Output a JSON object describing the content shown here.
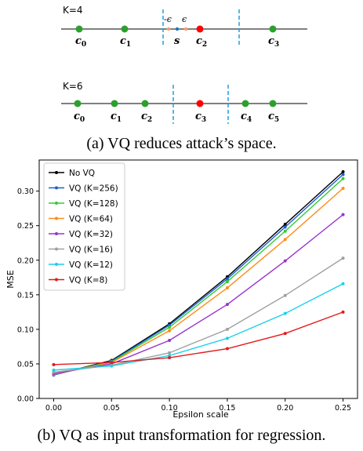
{
  "diagram": {
    "caption": "(a) VQ reduces attack’s space.",
    "panels": [
      {
        "k_label": "K=4",
        "points": [
          {
            "label": "c",
            "sub": "0",
            "color": "#2ca02c"
          },
          {
            "label": "c",
            "sub": "1",
            "color": "#2ca02c"
          },
          {
            "label": "c",
            "sub": "2",
            "color": "#ff0000"
          },
          {
            "label": "c",
            "sub": "3",
            "color": "#2ca02c"
          }
        ],
        "s_label": "s",
        "eps_left": "-ϵ",
        "eps_right": "ϵ"
      },
      {
        "k_label": "K=6",
        "points": [
          {
            "label": "c",
            "sub": "0",
            "color": "#2ca02c"
          },
          {
            "label": "c",
            "sub": "1",
            "color": "#2ca02c"
          },
          {
            "label": "c",
            "sub": "2",
            "color": "#2ca02c"
          },
          {
            "label": "c",
            "sub": "3",
            "color": "#ff0000"
          },
          {
            "label": "c",
            "sub": "4",
            "color": "#2ca02c"
          },
          {
            "label": "c",
            "sub": "5",
            "color": "#2ca02c"
          }
        ]
      }
    ],
    "boundary_color": "#1f9fe0"
  },
  "chart_data": {
    "type": "line",
    "caption": "(b) VQ as input transformation for regression.",
    "xlabel": "Epsilon scale",
    "ylabel": "MSE",
    "x": [
      0.0,
      0.05,
      0.1,
      0.15,
      0.2,
      0.25
    ],
    "xticks": [
      "0.00",
      "0.05",
      "0.10",
      "0.15",
      "0.20",
      "0.25"
    ],
    "yticks": [
      "0.00",
      "0.05",
      "0.10",
      "0.15",
      "0.20",
      "0.25",
      "0.30"
    ],
    "xlim": [
      -0.0125,
      0.2625
    ],
    "ylim": [
      0.0,
      0.345
    ],
    "legend_position": "top-left",
    "series": [
      {
        "name": "No VQ",
        "color": "#000000",
        "values": [
          0.034,
          0.055,
          0.108,
          0.176,
          0.252,
          0.328
        ]
      },
      {
        "name": "VQ (K=256)",
        "color": "#1f5fd6",
        "values": [
          0.034,
          0.054,
          0.106,
          0.173,
          0.248,
          0.324
        ]
      },
      {
        "name": "VQ (K=128)",
        "color": "#33cc33",
        "values": [
          0.035,
          0.053,
          0.103,
          0.169,
          0.242,
          0.318
        ]
      },
      {
        "name": "VQ (K=64)",
        "color": "#ff8c1a",
        "values": [
          0.035,
          0.052,
          0.098,
          0.16,
          0.23,
          0.304
        ]
      },
      {
        "name": "VQ (K=32)",
        "color": "#9933cc",
        "values": [
          0.036,
          0.05,
          0.084,
          0.136,
          0.199,
          0.266
        ]
      },
      {
        "name": "VQ (K=16)",
        "color": "#a0a0a0",
        "values": [
          0.038,
          0.048,
          0.066,
          0.1,
          0.149,
          0.203
        ]
      },
      {
        "name": "VQ (K=12)",
        "color": "#1ad1ea",
        "values": [
          0.041,
          0.047,
          0.062,
          0.087,
          0.123,
          0.166
        ]
      },
      {
        "name": "VQ (K=8)",
        "color": "#e31a1c",
        "values": [
          0.049,
          0.052,
          0.059,
          0.072,
          0.094,
          0.125
        ]
      }
    ]
  }
}
